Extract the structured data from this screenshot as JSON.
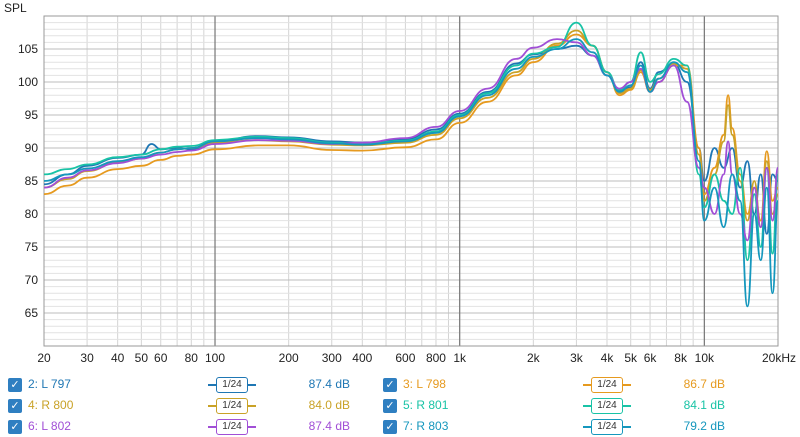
{
  "chart_data": {
    "type": "line",
    "ylabel": "SPL",
    "xscale": "log",
    "xlim": [
      20,
      20000
    ],
    "ylim": [
      60,
      110
    ],
    "grid": true,
    "x_ticks": [
      {
        "v": 20,
        "label": "20"
      },
      {
        "v": 30,
        "label": "30"
      },
      {
        "v": 40,
        "label": "40"
      },
      {
        "v": 50,
        "label": "50"
      },
      {
        "v": 60,
        "label": "60"
      },
      {
        "v": 80,
        "label": "80"
      },
      {
        "v": 100,
        "label": "100"
      },
      {
        "v": 200,
        "label": "200"
      },
      {
        "v": 300,
        "label": "300"
      },
      {
        "v": 400,
        "label": "400"
      },
      {
        "v": 600,
        "label": "600"
      },
      {
        "v": 800,
        "label": "800"
      },
      {
        "v": 1000,
        "label": "1k"
      },
      {
        "v": 2000,
        "label": "2k"
      },
      {
        "v": 3000,
        "label": "3k"
      },
      {
        "v": 4000,
        "label": "4k"
      },
      {
        "v": 5000,
        "label": "5k"
      },
      {
        "v": 6000,
        "label": "6k"
      },
      {
        "v": 8000,
        "label": "8k"
      },
      {
        "v": 10000,
        "label": "10k"
      },
      {
        "v": 20000,
        "label": "20kHz"
      }
    ],
    "y_ticks": [
      65,
      70,
      75,
      80,
      85,
      90,
      95,
      100,
      105
    ],
    "series": [
      {
        "name": "2: L 797",
        "color": "#1f77b4",
        "smoothing": "1/24",
        "level": "87.4 dB",
        "points": [
          [
            20,
            84.5
          ],
          [
            25,
            86
          ],
          [
            30,
            87.3
          ],
          [
            40,
            88.5
          ],
          [
            50,
            89
          ],
          [
            55,
            90.6
          ],
          [
            60,
            89.8
          ],
          [
            70,
            90
          ],
          [
            80,
            89.8
          ],
          [
            100,
            91
          ],
          [
            150,
            91.8
          ],
          [
            200,
            91.6
          ],
          [
            300,
            91
          ],
          [
            400,
            90.8
          ],
          [
            600,
            91.3
          ],
          [
            800,
            92.8
          ],
          [
            1000,
            95.2
          ],
          [
            1300,
            98.5
          ],
          [
            1700,
            102.8
          ],
          [
            2000,
            104.2
          ],
          [
            2500,
            105
          ],
          [
            3000,
            105.5
          ],
          [
            3500,
            104
          ],
          [
            4000,
            101
          ],
          [
            4500,
            98.7
          ],
          [
            5000,
            99.2
          ],
          [
            5500,
            103
          ],
          [
            6000,
            99
          ],
          [
            6500,
            101.5
          ],
          [
            7500,
            102.8
          ],
          [
            8500,
            100
          ],
          [
            9500,
            90
          ],
          [
            10000,
            85
          ],
          [
            11000,
            90
          ],
          [
            12000,
            87
          ],
          [
            13000,
            90
          ],
          [
            14000,
            84
          ],
          [
            15000,
            88
          ],
          [
            16000,
            80
          ],
          [
            17000,
            86
          ],
          [
            18000,
            77
          ],
          [
            19000,
            86
          ],
          [
            20000,
            85
          ]
        ]
      },
      {
        "name": "3: L 798",
        "color": "#e69a1f",
        "smoothing": "1/24",
        "level": "86.7 dB",
        "points": [
          [
            20,
            83
          ],
          [
            25,
            84.3
          ],
          [
            30,
            85.5
          ],
          [
            40,
            86.8
          ],
          [
            50,
            87.3
          ],
          [
            60,
            88.2
          ],
          [
            70,
            88.8
          ],
          [
            80,
            89
          ],
          [
            100,
            89.8
          ],
          [
            150,
            90.4
          ],
          [
            200,
            90.4
          ],
          [
            300,
            89.7
          ],
          [
            400,
            89.6
          ],
          [
            600,
            90.1
          ],
          [
            800,
            91.3
          ],
          [
            1000,
            93.8
          ],
          [
            1300,
            97
          ],
          [
            1700,
            101
          ],
          [
            2000,
            103
          ],
          [
            2500,
            105.5
          ],
          [
            3000,
            107.2
          ],
          [
            3500,
            105.5
          ],
          [
            4000,
            101.5
          ],
          [
            4500,
            98
          ],
          [
            5000,
            98.8
          ],
          [
            5500,
            101.5
          ],
          [
            6000,
            98.5
          ],
          [
            6500,
            100
          ],
          [
            7500,
            102.5
          ],
          [
            8500,
            102.5
          ],
          [
            9500,
            90
          ],
          [
            10000,
            83
          ],
          [
            11000,
            87
          ],
          [
            12000,
            92
          ],
          [
            12500,
            98
          ],
          [
            13000,
            93
          ],
          [
            14000,
            86
          ],
          [
            15000,
            80
          ],
          [
            16000,
            84
          ],
          [
            17000,
            79
          ],
          [
            18000,
            89.5
          ],
          [
            19000,
            82
          ],
          [
            20000,
            84
          ]
        ]
      },
      {
        "name": "4: R 800",
        "color": "#c9a227",
        "smoothing": "1/24",
        "level": "84.0 dB",
        "points": [
          [
            20,
            84
          ],
          [
            25,
            85.3
          ],
          [
            30,
            86.5
          ],
          [
            40,
            87.8
          ],
          [
            50,
            88.4
          ],
          [
            60,
            89.3
          ],
          [
            70,
            89.8
          ],
          [
            80,
            90
          ],
          [
            100,
            90.8
          ],
          [
            150,
            91.2
          ],
          [
            200,
            91
          ],
          [
            300,
            90.5
          ],
          [
            400,
            90.4
          ],
          [
            600,
            90.8
          ],
          [
            800,
            92
          ],
          [
            1000,
            94.5
          ],
          [
            1300,
            97.6
          ],
          [
            1700,
            101.5
          ],
          [
            2000,
            103.5
          ],
          [
            2500,
            105.8
          ],
          [
            3000,
            107.8
          ],
          [
            3500,
            105.5
          ],
          [
            4000,
            101.5
          ],
          [
            4500,
            98.3
          ],
          [
            5000,
            99
          ],
          [
            5500,
            101.8
          ],
          [
            6000,
            98.8
          ],
          [
            6500,
            100.5
          ],
          [
            7500,
            102.8
          ],
          [
            8500,
            102
          ],
          [
            9500,
            89
          ],
          [
            10000,
            82
          ],
          [
            11000,
            86
          ],
          [
            12000,
            91
          ],
          [
            12500,
            96.5
          ],
          [
            13000,
            92
          ],
          [
            14000,
            85
          ],
          [
            15000,
            79
          ],
          [
            16000,
            85
          ],
          [
            17000,
            78
          ],
          [
            18000,
            88
          ],
          [
            19000,
            80
          ],
          [
            20000,
            83
          ]
        ]
      },
      {
        "name": "5: R 801",
        "color": "#19c3a6",
        "smoothing": "1/24",
        "level": "84.1 dB",
        "points": [
          [
            20,
            86
          ],
          [
            25,
            86.8
          ],
          [
            30,
            87.5
          ],
          [
            40,
            88.6
          ],
          [
            50,
            89
          ],
          [
            60,
            89.8
          ],
          [
            70,
            90.2
          ],
          [
            80,
            90.3
          ],
          [
            100,
            91.2
          ],
          [
            150,
            91.7
          ],
          [
            200,
            91.5
          ],
          [
            300,
            90.8
          ],
          [
            400,
            90.6
          ],
          [
            600,
            91.1
          ],
          [
            800,
            92.5
          ],
          [
            1000,
            95
          ],
          [
            1300,
            98.3
          ],
          [
            1700,
            102.5
          ],
          [
            2000,
            104.3
          ],
          [
            2500,
            105.3
          ],
          [
            3000,
            109
          ],
          [
            3500,
            105.5
          ],
          [
            4000,
            101.5
          ],
          [
            4500,
            98.8
          ],
          [
            5000,
            100
          ],
          [
            5500,
            104.5
          ],
          [
            6000,
            100
          ],
          [
            6500,
            101.2
          ],
          [
            7500,
            103.5
          ],
          [
            8500,
            102.5
          ],
          [
            9500,
            86
          ],
          [
            10000,
            81
          ],
          [
            11000,
            86
          ],
          [
            12000,
            82
          ],
          [
            13000,
            80
          ],
          [
            14000,
            87
          ],
          [
            15000,
            73
          ],
          [
            16000,
            83
          ],
          [
            17000,
            75
          ],
          [
            18000,
            87
          ],
          [
            19000,
            74
          ],
          [
            20000,
            86
          ]
        ]
      },
      {
        "name": "6: L 802",
        "color": "#a14fd6",
        "smoothing": "1/24",
        "level": "87.4 dB",
        "points": [
          [
            20,
            84
          ],
          [
            25,
            85.5
          ],
          [
            30,
            86.6
          ],
          [
            40,
            87.7
          ],
          [
            50,
            88.4
          ],
          [
            60,
            89
          ],
          [
            70,
            89.4
          ],
          [
            80,
            89.6
          ],
          [
            100,
            90.6
          ],
          [
            150,
            91.2
          ],
          [
            200,
            91.1
          ],
          [
            300,
            90.6
          ],
          [
            400,
            90.8
          ],
          [
            600,
            91.5
          ],
          [
            800,
            93.2
          ],
          [
            1000,
            95.6
          ],
          [
            1300,
            99
          ],
          [
            1700,
            103.5
          ],
          [
            2000,
            105.2
          ],
          [
            2500,
            106.5
          ],
          [
            3000,
            106
          ],
          [
            3500,
            104
          ],
          [
            4000,
            101
          ],
          [
            4500,
            99
          ],
          [
            5000,
            100
          ],
          [
            5500,
            102
          ],
          [
            6000,
            98.5
          ],
          [
            6500,
            100
          ],
          [
            7500,
            102.5
          ],
          [
            8500,
            97
          ],
          [
            9500,
            87
          ],
          [
            10000,
            84
          ],
          [
            11000,
            80
          ],
          [
            12000,
            86
          ],
          [
            12500,
            91
          ],
          [
            13000,
            86
          ],
          [
            14000,
            80
          ],
          [
            15000,
            76
          ],
          [
            16000,
            84
          ],
          [
            17000,
            78
          ],
          [
            18000,
            87
          ],
          [
            19000,
            79
          ],
          [
            20000,
            87
          ]
        ]
      },
      {
        "name": "7: R 803",
        "color": "#1597bd",
        "smoothing": "1/24",
        "level": "79.2 dB",
        "points": [
          [
            20,
            85
          ],
          [
            25,
            86
          ],
          [
            30,
            86.9
          ],
          [
            40,
            88
          ],
          [
            50,
            88.6
          ],
          [
            60,
            89.3
          ],
          [
            70,
            89.8
          ],
          [
            80,
            90
          ],
          [
            100,
            91
          ],
          [
            150,
            91.5
          ],
          [
            200,
            91.3
          ],
          [
            300,
            90.7
          ],
          [
            400,
            90.5
          ],
          [
            600,
            91
          ],
          [
            800,
            92.3
          ],
          [
            1000,
            94.8
          ],
          [
            1300,
            98
          ],
          [
            1700,
            102
          ],
          [
            2000,
            103.8
          ],
          [
            2500,
            105
          ],
          [
            3000,
            106.5
          ],
          [
            3500,
            104.5
          ],
          [
            4000,
            101
          ],
          [
            4500,
            98.5
          ],
          [
            5000,
            99.5
          ],
          [
            5500,
            102.5
          ],
          [
            6000,
            98.5
          ],
          [
            6500,
            100.5
          ],
          [
            7500,
            103
          ],
          [
            8500,
            101.5
          ],
          [
            9500,
            88
          ],
          [
            10000,
            79
          ],
          [
            11000,
            84
          ],
          [
            12000,
            78
          ],
          [
            13000,
            86
          ],
          [
            14000,
            82
          ],
          [
            15000,
            66
          ],
          [
            16000,
            80
          ],
          [
            17000,
            73
          ],
          [
            18000,
            84
          ],
          [
            19000,
            68
          ],
          [
            20000,
            82
          ]
        ]
      }
    ]
  }
}
